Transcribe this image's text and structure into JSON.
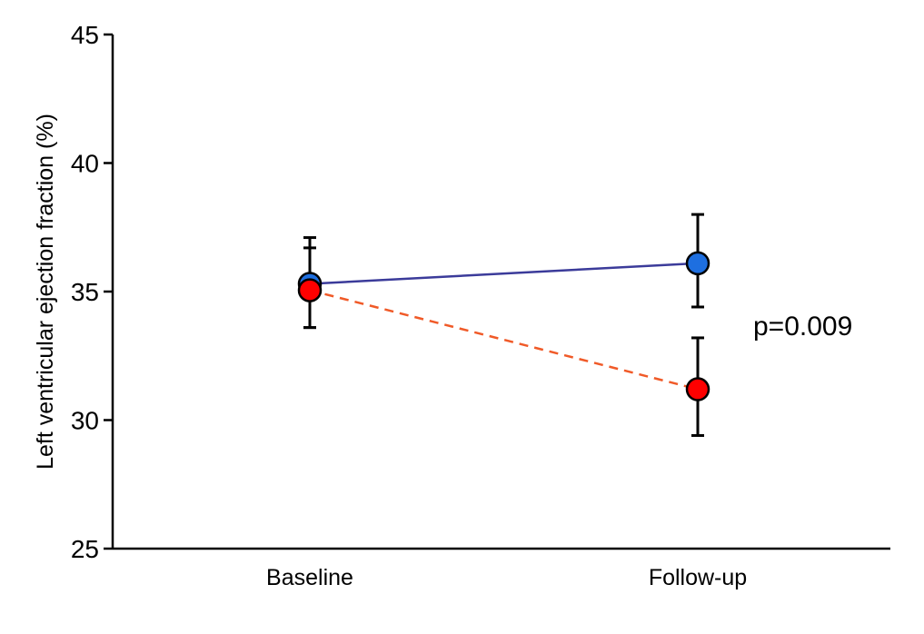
{
  "chart_data": {
    "type": "line",
    "title": "",
    "xlabel": "",
    "ylabel": "Left ventricular ejection fraction (%)",
    "categories": [
      "Baseline",
      "Follow-up"
    ],
    "ylim": [
      25,
      45
    ],
    "yticks": [
      "25",
      "30",
      "35",
      "40",
      "45"
    ],
    "grid": false,
    "series": [
      {
        "values": [
          35.3,
          36.1
        ],
        "err_low": [
          33.6,
          34.4
        ],
        "err_high": [
          36.7,
          38.0
        ],
        "line_color": "#3b3b9a",
        "marker_color": "#1e6fe0",
        "line_style": "solid"
      },
      {
        "values": [
          35.05,
          31.2
        ],
        "err_low": [
          33.6,
          29.4
        ],
        "err_high": [
          37.1,
          33.2
        ],
        "line_color": "#f05a28",
        "marker_color": "#ff0000",
        "line_style": "dashed"
      }
    ],
    "annotation": "p=0.009"
  }
}
